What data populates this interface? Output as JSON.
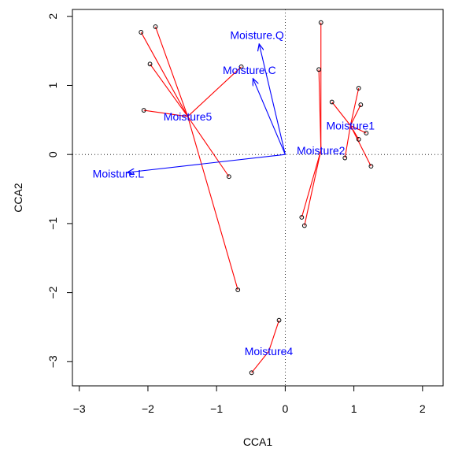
{
  "chart_data": {
    "type": "scatter",
    "subtype": "cca-ordination-biplot",
    "xlabel": "CCA1",
    "ylabel": "CCA2",
    "xlim": [
      -3.1,
      2.3
    ],
    "ylim": [
      -3.35,
      2.1
    ],
    "x_ticks": [
      -3,
      -2,
      -1,
      0,
      1,
      2
    ],
    "x_tick_labels": [
      "−3",
      "−2",
      "−1",
      "0",
      "1",
      "2"
    ],
    "y_ticks": [
      -3,
      -2,
      -1,
      0,
      1,
      2
    ],
    "y_tick_labels": [
      "−3",
      "−2",
      "−1",
      "0",
      "1",
      "2"
    ],
    "reference_lines": {
      "x": 0,
      "y": 0,
      "style": "dotted"
    },
    "grid": false,
    "legend": "none",
    "colors": {
      "spider": "#ff0000",
      "arrow": "#0000ff",
      "label": "#0000ff",
      "point": "#000000",
      "axis": "#000000"
    },
    "site_groups": [
      {
        "label": "Moisture1",
        "centroid": [
          0.95,
          0.42
        ],
        "points": [
          [
            1.07,
            0.96
          ],
          [
            0.68,
            0.76
          ],
          [
            1.1,
            0.72
          ],
          [
            1.07,
            0.22
          ],
          [
            1.18,
            0.31
          ],
          [
            1.25,
            -0.17
          ],
          [
            0.87,
            -0.05
          ]
        ]
      },
      {
        "label": "Moisture2",
        "centroid": [
          0.52,
          0.06
        ],
        "points": [
          [
            0.52,
            1.91
          ],
          [
            0.49,
            1.23
          ],
          [
            0.24,
            -0.91
          ],
          [
            0.28,
            -1.03
          ]
        ]
      },
      {
        "label": "Moisture4",
        "centroid": [
          -0.24,
          -2.85
        ],
        "points": [
          [
            -0.09,
            -2.4
          ],
          [
            -0.49,
            -3.16
          ]
        ]
      },
      {
        "label": "Moisture5",
        "centroid": [
          -1.42,
          0.55
        ],
        "points": [
          [
            -2.1,
            1.77
          ],
          [
            -1.89,
            1.85
          ],
          [
            -1.97,
            1.31
          ],
          [
            -2.06,
            0.64
          ],
          [
            -0.64,
            1.27
          ],
          [
            -0.82,
            -0.32
          ],
          [
            -0.69,
            -1.96
          ]
        ]
      }
    ],
    "biplot_arrows": [
      {
        "label": "Moisture.C",
        "end": [
          -0.47,
          1.1
        ]
      },
      {
        "label": "Moisture.Q",
        "end": [
          -0.38,
          1.6
        ]
      },
      {
        "label": "Moisture.L",
        "end": [
          -2.3,
          -0.26
        ]
      }
    ]
  }
}
